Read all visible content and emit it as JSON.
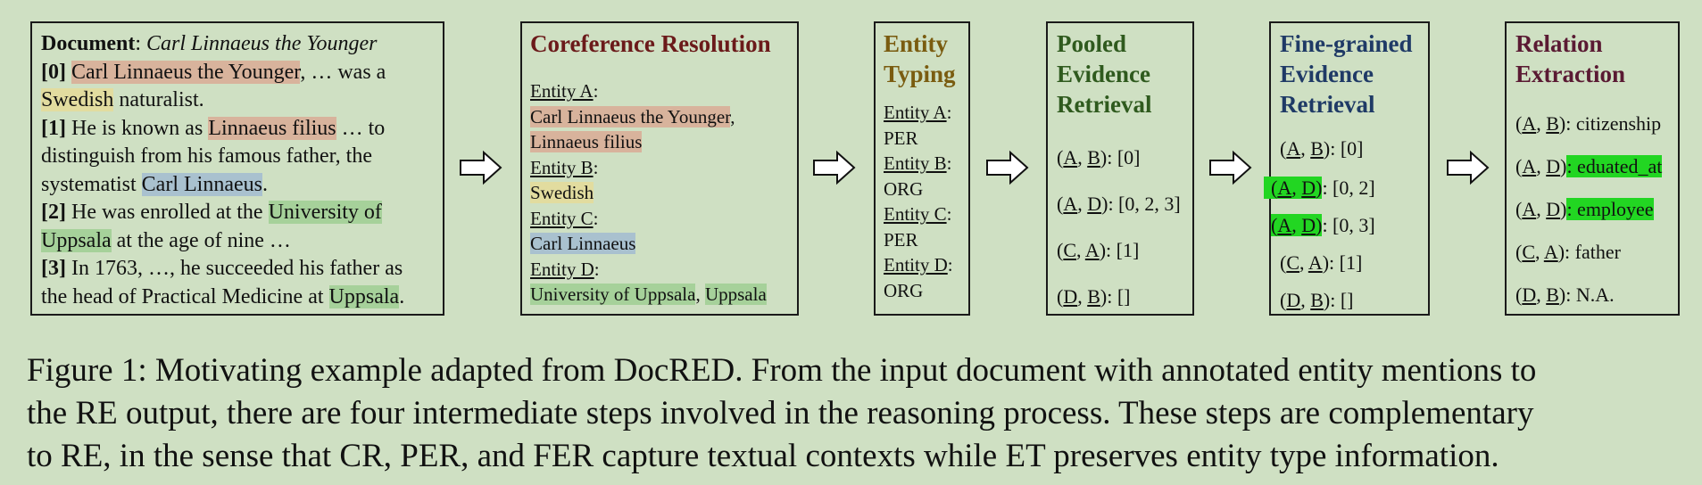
{
  "document": {
    "label": "Document",
    "title": "Carl Linnaeus the Younger",
    "s0": {
      "idx": "[0]",
      "m1": "Carl Linnaeus the Younger",
      "t1": ", …  was a",
      "m2": "Swedish",
      "t2": " naturalist."
    },
    "s1": {
      "idx": "[1]",
      "t1": " He is known as ",
      "m1": "Linnaeus filius",
      "t2": " … to",
      "t3": "distinguish from his famous father, the",
      "t4": "systematist ",
      "m2": "Carl Linnaeus",
      "t5": "."
    },
    "s2": {
      "idx": "[2]",
      "t1": " He was enrolled at the ",
      "m1a": "University of",
      "m1b": "Uppsala",
      "t2": " at the age of nine …"
    },
    "s3": {
      "idx": "[3]",
      "t1": " In 1763, …, he succeeded his father as",
      "t2": "the head of Practical Medicine at ",
      "m1": "Uppsala",
      "t3": "."
    }
  },
  "coref": {
    "title": "Coreference Resolution",
    "a_label": "Entity A",
    "a_m1": "Carl Linnaeus the Younger",
    "a_m2": "Linnaeus filius",
    "b_label": "Entity B",
    "b_m1": "Swedish",
    "c_label": "Entity C",
    "c_m1": "Carl Linnaeus",
    "d_label": "Entity D",
    "d_m1": "University of Uppsala",
    "d_m2": "Uppsala"
  },
  "typing": {
    "title_l1": "Entity",
    "title_l2": "Typing",
    "a_label": "Entity A",
    "a_type": "PER",
    "b_label": "Entity B",
    "b_type": "ORG",
    "c_label": "Entity C",
    "c_type": "PER",
    "d_label": "Entity D",
    "d_type": "ORG"
  },
  "pooled": {
    "title_l1": "Pooled",
    "title_l2": "Evidence",
    "title_l3": "Retrieval",
    "r1": {
      "e1": "A",
      "e2": "B",
      "v": ": [0]"
    },
    "r2": {
      "e1": "A",
      "e2": "D",
      "v": ": [0, 2, 3]"
    },
    "r3": {
      "e1": "C",
      "e2": "A",
      "v": ": [1]"
    },
    "r4": {
      "e1": "D",
      "e2": "B",
      "v": ": []"
    }
  },
  "fine": {
    "title_l1": "Fine-grained",
    "title_l2": "Evidence",
    "title_l3": "Retrieval",
    "r1": {
      "e1": "A",
      "e2": "B",
      "v": ": [0]"
    },
    "r2": {
      "e1": "A",
      "e2": "D",
      "v": ": [0, 2]"
    },
    "r3": {
      "e1": "A",
      "e2": "D",
      "v": ": [0, 3]"
    },
    "r4": {
      "e1": "C",
      "e2": "A",
      "v": ": [1]"
    },
    "r5": {
      "e1": "D",
      "e2": "B",
      "v": ": []"
    }
  },
  "relation": {
    "title_l1": "Relation",
    "title_l2": "Extraction",
    "r1": {
      "e1": "A",
      "e2": "B",
      "v": ": citizenship"
    },
    "r2": {
      "e1": "A",
      "e2": "D",
      "v": ": eduated_at"
    },
    "r3": {
      "e1": "A",
      "e2": "D",
      "v": ": employee "
    },
    "r4": {
      "e1": "C",
      "e2": "A",
      "v": ": father"
    },
    "r5": {
      "e1": "D",
      "e2": "B",
      "v": ": N.A."
    }
  },
  "caption": {
    "l1": "Figure 1: Motivating example adapted from DocRED. From the input document with annotated entity mentions to",
    "l2": "the RE output, there are four intermediate steps involved in the reasoning process. These steps are complementary",
    "l3": "to RE, in the sense that CR, PER, and FER capture textual contexts while ET preserves entity type information."
  },
  "colors": {
    "background": "#cfe0c3",
    "coref_title": "#6b1a1a",
    "typing_title": "#7a5c10",
    "pooled_title": "#2f5a1e",
    "fine_title": "#1f3a66",
    "relation_title": "#5a1a33",
    "mention_red": "#d8b39c",
    "mention_yellow": "#e2dc9f",
    "mention_blue": "#a9c1cf",
    "mention_green": "#a6d19a",
    "highlight_lime": "#22d622"
  }
}
